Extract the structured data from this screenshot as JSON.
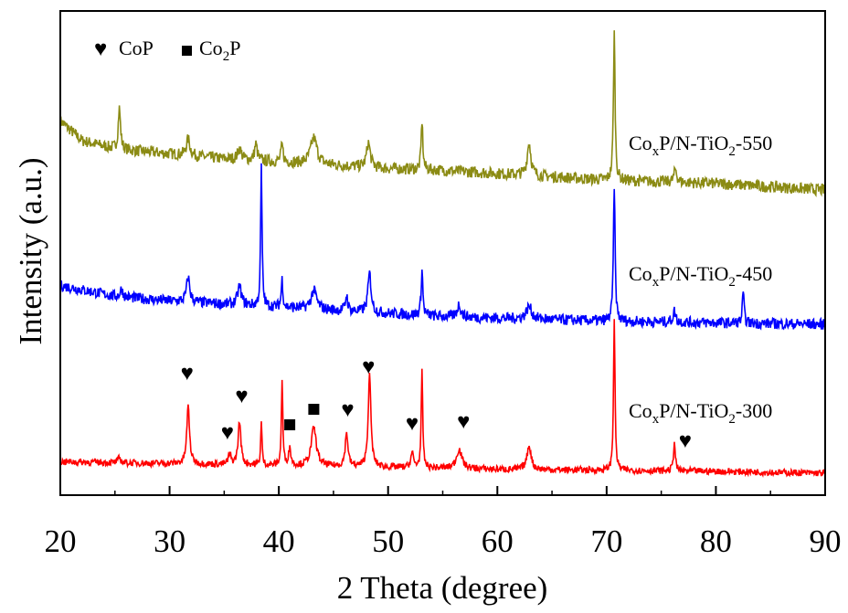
{
  "chart_data": {
    "type": "line",
    "xlabel": "2 Theta (degree)",
    "ylabel": "Intensity (a.u.)",
    "xlim": [
      20,
      90
    ],
    "xticks": [
      20,
      30,
      40,
      50,
      60,
      70,
      80,
      90
    ],
    "grid": false,
    "yticks_shown": false,
    "legend": {
      "position": "top-left",
      "entries": [
        {
          "marker": "heart",
          "label": "CoP"
        },
        {
          "marker": "square",
          "label": "Co2P",
          "label_main": "Co",
          "label_sub": "2",
          "label_tail": "P"
        }
      ]
    },
    "series": [
      {
        "label_main": "Co",
        "label_sub1": "x",
        "label_mid": "P/N-TiO",
        "label_sub2": "2",
        "label_tail": "-550",
        "color": "#8b8b14",
        "baseline": [
          [
            20,
            0.42
          ],
          [
            22,
            0.3
          ],
          [
            25,
            0.25
          ],
          [
            30,
            0.22
          ],
          [
            35,
            0.19
          ],
          [
            40,
            0.17
          ],
          [
            45,
            0.15
          ],
          [
            50,
            0.13
          ],
          [
            55,
            0.12
          ],
          [
            60,
            0.1
          ],
          [
            65,
            0.08
          ],
          [
            70,
            0.06
          ],
          [
            75,
            0.05
          ],
          [
            80,
            0.04
          ],
          [
            85,
            0.02
          ],
          [
            90,
            0.0
          ]
        ],
        "peaks": [
          [
            25.4,
            0.25,
            0.25
          ],
          [
            31.7,
            0.1,
            0.4
          ],
          [
            36.4,
            0.07,
            0.4
          ],
          [
            37.9,
            0.1,
            0.3
          ],
          [
            40.3,
            0.1,
            0.25
          ],
          [
            43.2,
            0.16,
            0.7
          ],
          [
            48.2,
            0.15,
            0.4
          ],
          [
            53.1,
            0.3,
            0.18
          ],
          [
            62.9,
            0.2,
            0.4
          ],
          [
            70.7,
            0.9,
            0.18
          ],
          [
            76.3,
            0.08,
            0.3
          ]
        ]
      },
      {
        "label_main": "Co",
        "label_sub1": "x",
        "label_mid": "P/N-TiO",
        "label_sub2": "2",
        "label_tail": "-450",
        "color": "#0000ff",
        "baseline": [
          [
            20,
            0.25
          ],
          [
            25,
            0.18
          ],
          [
            30,
            0.15
          ],
          [
            35,
            0.13
          ],
          [
            40,
            0.11
          ],
          [
            45,
            0.09
          ],
          [
            50,
            0.07
          ],
          [
            55,
            0.05
          ],
          [
            60,
            0.04
          ],
          [
            65,
            0.03
          ],
          [
            70,
            0.02
          ],
          [
            80,
            0.01
          ],
          [
            90,
            0.0
          ]
        ],
        "peaks": [
          [
            25.6,
            0.05,
            0.3
          ],
          [
            31.7,
            0.16,
            0.35
          ],
          [
            36.4,
            0.12,
            0.4
          ],
          [
            38.4,
            0.9,
            0.15
          ],
          [
            40.3,
            0.18,
            0.18
          ],
          [
            43.2,
            0.12,
            0.6
          ],
          [
            46.2,
            0.1,
            0.25
          ],
          [
            48.3,
            0.25,
            0.35
          ],
          [
            53.1,
            0.3,
            0.18
          ],
          [
            56.5,
            0.08,
            0.4
          ],
          [
            62.9,
            0.08,
            0.6
          ],
          [
            70.7,
            0.88,
            0.18
          ],
          [
            76.2,
            0.07,
            0.3
          ],
          [
            82.5,
            0.2,
            0.18
          ]
        ]
      },
      {
        "label_main": "Co",
        "label_sub1": "x",
        "label_mid": "P/N-TiO",
        "label_sub2": "2",
        "label_tail": "-300",
        "color": "#ff0000",
        "baseline": [
          [
            20,
            0.12
          ],
          [
            30,
            0.1
          ],
          [
            40,
            0.08
          ],
          [
            50,
            0.06
          ],
          [
            60,
            0.04
          ],
          [
            70,
            0.03
          ],
          [
            80,
            0.02
          ],
          [
            90,
            0.0
          ]
        ],
        "peaks": [
          [
            25.4,
            0.05,
            0.3
          ],
          [
            31.7,
            0.6,
            0.3
          ],
          [
            35.5,
            0.1,
            0.3
          ],
          [
            36.4,
            0.45,
            0.3
          ],
          [
            38.4,
            0.45,
            0.14
          ],
          [
            40.3,
            0.9,
            0.15
          ],
          [
            41.0,
            0.18,
            0.25
          ],
          [
            43.2,
            0.4,
            0.55
          ],
          [
            46.2,
            0.35,
            0.3
          ],
          [
            48.3,
            0.95,
            0.3
          ],
          [
            52.2,
            0.15,
            0.3
          ],
          [
            53.1,
            1.0,
            0.16
          ],
          [
            56.5,
            0.2,
            0.6
          ],
          [
            62.9,
            0.25,
            0.45
          ],
          [
            70.7,
            1.6,
            0.16
          ],
          [
            76.2,
            0.3,
            0.2
          ]
        ]
      }
    ],
    "annotations": [
      {
        "marker": "heart",
        "x": 31.6
      },
      {
        "marker": "heart",
        "x": 35.3
      },
      {
        "marker": "heart",
        "x": 36.6
      },
      {
        "marker": "square",
        "x": 41.0
      },
      {
        "marker": "square",
        "x": 43.2
      },
      {
        "marker": "heart",
        "x": 46.3
      },
      {
        "marker": "heart",
        "x": 48.2
      },
      {
        "marker": "heart",
        "x": 52.2
      },
      {
        "marker": "heart",
        "x": 56.9
      },
      {
        "marker": "heart",
        "x": 77.2
      }
    ]
  }
}
